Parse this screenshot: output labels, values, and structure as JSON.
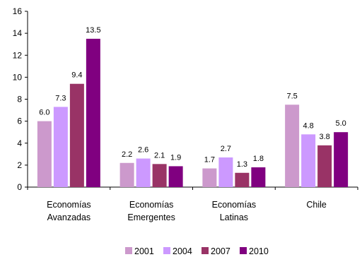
{
  "chart_data": {
    "type": "bar",
    "categories": [
      [
        "Economías",
        "Avanzadas"
      ],
      [
        "Economías",
        "Emergentes"
      ],
      [
        "Economías",
        "Latinas"
      ],
      [
        "Chile"
      ]
    ],
    "series": [
      {
        "name": "2001",
        "color": "#cc99cc",
        "values": [
          6.0,
          2.2,
          1.7,
          7.5
        ],
        "labels": [
          "6.0",
          "2.2",
          "1.7",
          "7.5"
        ]
      },
      {
        "name": "2004",
        "color": "#cc99ff",
        "values": [
          7.3,
          2.6,
          2.7,
          4.8
        ],
        "labels": [
          "7.3",
          "2.6",
          "2.7",
          "4.8"
        ]
      },
      {
        "name": "2007",
        "color": "#993366",
        "values": [
          9.4,
          2.1,
          1.3,
          3.8
        ],
        "labels": [
          "9.4",
          "2.1",
          "1.3",
          "3.8"
        ]
      },
      {
        "name": "2010",
        "color": "#800080",
        "values": [
          13.5,
          1.9,
          1.8,
          5.0
        ],
        "labels": [
          "13.5",
          "1.9",
          "1.8",
          "5.0"
        ]
      }
    ],
    "yticks": [
      "0",
      "2",
      "4",
      "6",
      "8",
      "10",
      "12",
      "14",
      "16"
    ],
    "ylim": [
      0,
      16
    ],
    "title": "",
    "xlabel": "",
    "ylabel": "",
    "grid": false,
    "legend": "bottom"
  }
}
